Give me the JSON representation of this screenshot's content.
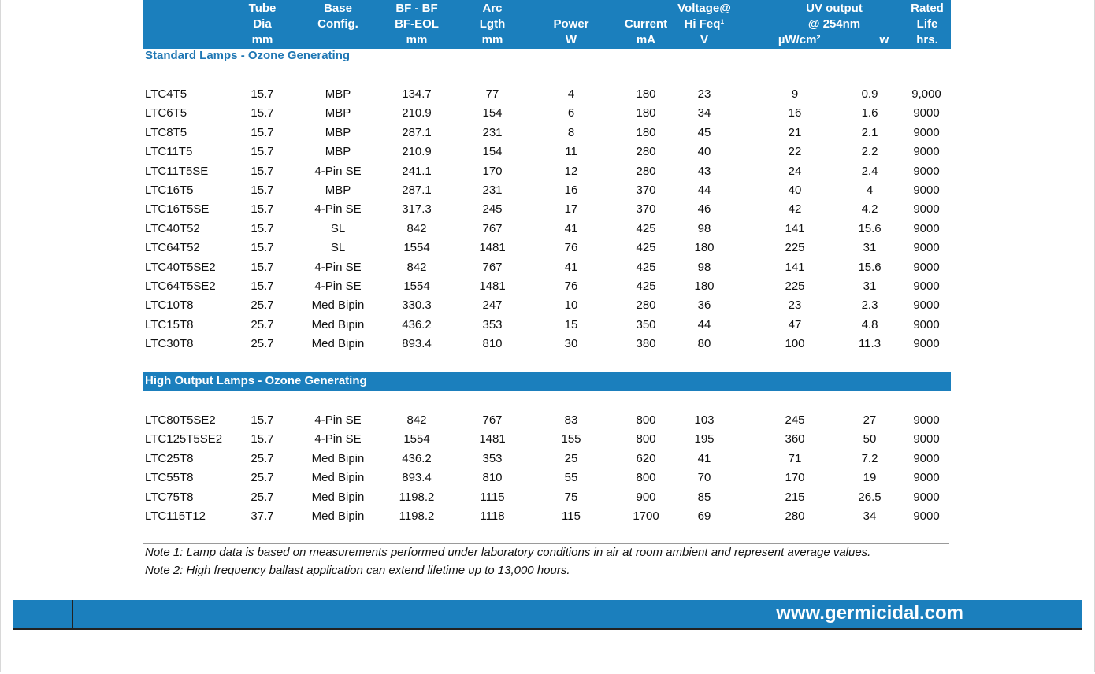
{
  "columns": [
    {
      "key": "model",
      "lines": [
        "",
        "",
        ""
      ]
    },
    {
      "key": "tube",
      "lines": [
        "Tube",
        "Dia",
        "mm"
      ]
    },
    {
      "key": "base",
      "lines": [
        "Base",
        "Config.",
        ""
      ]
    },
    {
      "key": "bf",
      "lines": [
        "BF - BF",
        "BF-EOL",
        "mm"
      ]
    },
    {
      "key": "arc",
      "lines": [
        "Arc",
        "Lgth",
        "mm"
      ]
    },
    {
      "key": "power",
      "lines": [
        "",
        "Power",
        "W"
      ]
    },
    {
      "key": "current",
      "lines": [
        "",
        "Current",
        "mA"
      ]
    },
    {
      "key": "voltage",
      "lines": [
        "Voltage@",
        "Hi Feq¹",
        "V"
      ]
    },
    {
      "key": "uv",
      "lines": [
        "UV output",
        "@ 254nm",
        ""
      ]
    },
    {
      "key": "uvunits",
      "lines": [
        "",
        "",
        "µW/cm²                  w"
      ]
    },
    {
      "key": "life",
      "lines": [
        "Rated",
        "Life",
        "hrs."
      ]
    }
  ],
  "section_standard": "Standard Lamps - Ozone Generating",
  "section_high_output": "High Output Lamps  - Ozone Generating",
  "standard_rows": [
    [
      "LTC4T5",
      "15.7",
      "MBP",
      "134.7",
      "77",
      "4",
      "180",
      "23",
      "9",
      "0.9",
      "9,000"
    ],
    [
      "LTC6T5",
      "15.7",
      "MBP",
      "210.9",
      "154",
      "6",
      "180",
      "34",
      "16",
      "1.6",
      "9000"
    ],
    [
      "LTC8T5",
      "15.7",
      "MBP",
      "287.1",
      "231",
      "8",
      "180",
      "45",
      "21",
      "2.1",
      "9000"
    ],
    [
      "LTC11T5",
      "15.7",
      "MBP",
      "210.9",
      "154",
      "11",
      "280",
      "40",
      "22",
      "2.2",
      "9000"
    ],
    [
      "LTC11T5SE",
      "15.7",
      "4-Pin SE",
      "241.1",
      "170",
      "12",
      "280",
      "43",
      "24",
      "2.4",
      "9000"
    ],
    [
      "LTC16T5",
      "15.7",
      "MBP",
      "287.1",
      "231",
      "16",
      "370",
      "44",
      "40",
      "4",
      "9000"
    ],
    [
      "LTC16T5SE",
      "15.7",
      "4-Pin SE",
      "317.3",
      "245",
      "17",
      "370",
      "46",
      "42",
      "4.2",
      "9000"
    ],
    [
      "LTC40T52",
      "15.7",
      "SL",
      "842",
      "767",
      "41",
      "425",
      "98",
      "141",
      "15.6",
      "9000"
    ],
    [
      "LTC64T52",
      "15.7",
      "SL",
      "1554",
      "1481",
      "76",
      "425",
      "180",
      "225",
      "31",
      "9000"
    ],
    [
      "LTC40T5SE2",
      "15.7",
      "4-Pin SE",
      "842",
      "767",
      "41",
      "425",
      "98",
      "141",
      "15.6",
      "9000"
    ],
    [
      "LTC64T5SE2",
      "15.7",
      "4-Pin SE",
      "1554",
      "1481",
      "76",
      "425",
      "180",
      "225",
      "31",
      "9000"
    ],
    [
      "LTC10T8",
      "25.7",
      "Med Bipin",
      "330.3",
      "247",
      "10",
      "280",
      "36",
      "23",
      "2.3",
      "9000"
    ],
    [
      "LTC15T8",
      "25.7",
      "Med Bipin",
      "436.2",
      "353",
      "15",
      "350",
      "44",
      "47",
      "4.8",
      "9000"
    ],
    [
      "LTC30T8",
      "25.7",
      "Med Bipin",
      "893.4",
      "810",
      "30",
      "380",
      "80",
      "100",
      "11.3",
      "9000"
    ]
  ],
  "high_output_rows": [
    [
      "LTC80T5SE2",
      "15.7",
      "4-Pin SE",
      "842",
      "767",
      "83",
      "800",
      "103",
      "245",
      "27",
      "9000"
    ],
    [
      "LTC125T5SE2",
      "15.7",
      "4-Pin SE",
      "1554",
      "1481",
      "155",
      "800",
      "195",
      "360",
      "50",
      "9000"
    ],
    [
      "LTC25T8",
      "25.7",
      "Med Bipin",
      "436.2",
      "353",
      "25",
      "620",
      "41",
      "71",
      "7.2",
      "9000"
    ],
    [
      "LTC55T8",
      "25.7",
      "Med Bipin",
      "893.4",
      "810",
      "55",
      "800",
      "70",
      "170",
      "19",
      "9000"
    ],
    [
      "LTC75T8",
      "25.7",
      "Med Bipin",
      "1198.2",
      "1115",
      "75",
      "900",
      "85",
      "215",
      "26.5",
      "9000"
    ],
    [
      "LTC115T12",
      "37.7",
      "Med Bipin",
      "1198.2",
      "1118",
      "115",
      "1700",
      "69",
      "280",
      "34",
      "9000"
    ]
  ],
  "notes": [
    "Note 1: Lamp data is based on measurements performed under laboratory conditions in air at room ambient and represent average values.",
    "Note 2: High frequency ballast application can extend lifetime up to 13,000 hours."
  ],
  "footer_url": "www.germicidal.com",
  "colors": {
    "header_bg": "#1b7fbd",
    "section_text": "#1f77b4"
  }
}
